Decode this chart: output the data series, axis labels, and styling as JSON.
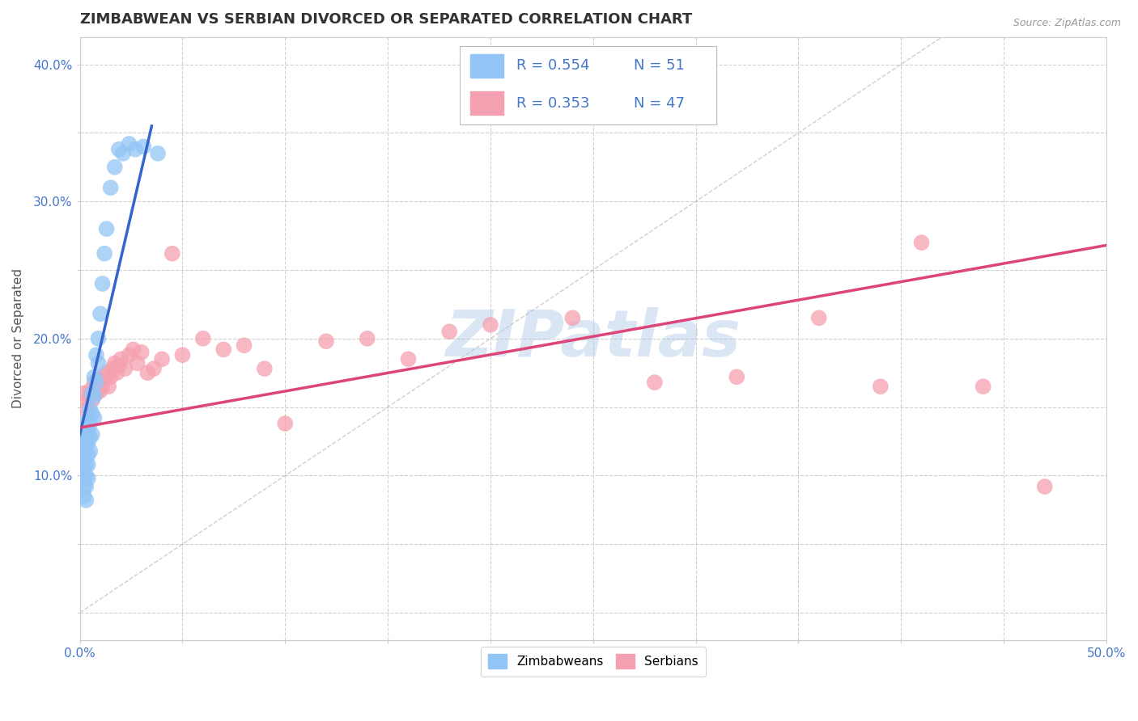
{
  "title": "ZIMBABWEAN VS SERBIAN DIVORCED OR SEPARATED CORRELATION CHART",
  "source_text": "Source: ZipAtlas.com",
  "ylabel": "Divorced or Separated",
  "xlim": [
    0.0,
    0.5
  ],
  "ylim": [
    -0.02,
    0.42
  ],
  "xticks": [
    0.0,
    0.05,
    0.1,
    0.15,
    0.2,
    0.25,
    0.3,
    0.35,
    0.4,
    0.45,
    0.5
  ],
  "yticks": [
    0.0,
    0.05,
    0.1,
    0.15,
    0.2,
    0.25,
    0.3,
    0.35,
    0.4
  ],
  "zim_color": "#92c5f5",
  "ser_color": "#f5a0b0",
  "zim_line_color": "#3366cc",
  "ser_line_color": "#dd4477",
  "watermark": "ZIPatlas",
  "legend_R_zim": "R = 0.554",
  "legend_N_zim": "N = 51",
  "legend_R_ser": "R = 0.353",
  "legend_N_ser": "N = 47",
  "zim_scatter_x": [
    0.001,
    0.001,
    0.001,
    0.001,
    0.002,
    0.002,
    0.002,
    0.002,
    0.002,
    0.002,
    0.002,
    0.003,
    0.003,
    0.003,
    0.003,
    0.003,
    0.003,
    0.003,
    0.003,
    0.004,
    0.004,
    0.004,
    0.004,
    0.004,
    0.004,
    0.005,
    0.005,
    0.005,
    0.005,
    0.006,
    0.006,
    0.006,
    0.007,
    0.007,
    0.007,
    0.008,
    0.008,
    0.009,
    0.009,
    0.01,
    0.011,
    0.012,
    0.013,
    0.015,
    0.017,
    0.019,
    0.021,
    0.024,
    0.027,
    0.031,
    0.038
  ],
  "zim_scatter_y": [
    0.13,
    0.12,
    0.115,
    0.108,
    0.125,
    0.118,
    0.112,
    0.105,
    0.098,
    0.092,
    0.085,
    0.135,
    0.128,
    0.122,
    0.115,
    0.108,
    0.1,
    0.092,
    0.082,
    0.14,
    0.132,
    0.124,
    0.115,
    0.108,
    0.098,
    0.148,
    0.138,
    0.128,
    0.118,
    0.16,
    0.145,
    0.13,
    0.172,
    0.158,
    0.142,
    0.188,
    0.168,
    0.2,
    0.182,
    0.218,
    0.24,
    0.262,
    0.28,
    0.31,
    0.325,
    0.338,
    0.335,
    0.342,
    0.338,
    0.34,
    0.335
  ],
  "ser_scatter_x": [
    0.002,
    0.003,
    0.004,
    0.005,
    0.006,
    0.007,
    0.008,
    0.009,
    0.01,
    0.011,
    0.012,
    0.013,
    0.014,
    0.015,
    0.016,
    0.017,
    0.018,
    0.019,
    0.02,
    0.022,
    0.024,
    0.026,
    0.028,
    0.03,
    0.033,
    0.036,
    0.04,
    0.045,
    0.05,
    0.06,
    0.07,
    0.08,
    0.09,
    0.1,
    0.12,
    0.14,
    0.16,
    0.18,
    0.2,
    0.24,
    0.28,
    0.32,
    0.36,
    0.39,
    0.41,
    0.44,
    0.47
  ],
  "ser_scatter_y": [
    0.16,
    0.148,
    0.155,
    0.162,
    0.155,
    0.168,
    0.16,
    0.17,
    0.162,
    0.165,
    0.172,
    0.175,
    0.165,
    0.172,
    0.178,
    0.182,
    0.175,
    0.18,
    0.185,
    0.178,
    0.188,
    0.192,
    0.182,
    0.19,
    0.175,
    0.178,
    0.185,
    0.262,
    0.188,
    0.2,
    0.192,
    0.195,
    0.178,
    0.138,
    0.198,
    0.2,
    0.185,
    0.205,
    0.21,
    0.215,
    0.168,
    0.172,
    0.215,
    0.165,
    0.27,
    0.165,
    0.092
  ],
  "background_color": "#ffffff",
  "grid_color": "#d0d0d0",
  "title_color": "#333333",
  "axis_color": "#4477cc",
  "title_fontsize": 13,
  "label_fontsize": 11,
  "tick_fontsize": 11,
  "zim_line_x0": 0.0,
  "zim_line_y0": 0.13,
  "zim_line_x1": 0.035,
  "zim_line_y1": 0.355,
  "ser_line_x0": 0.0,
  "ser_line_y0": 0.135,
  "ser_line_x1": 0.5,
  "ser_line_y1": 0.268
}
